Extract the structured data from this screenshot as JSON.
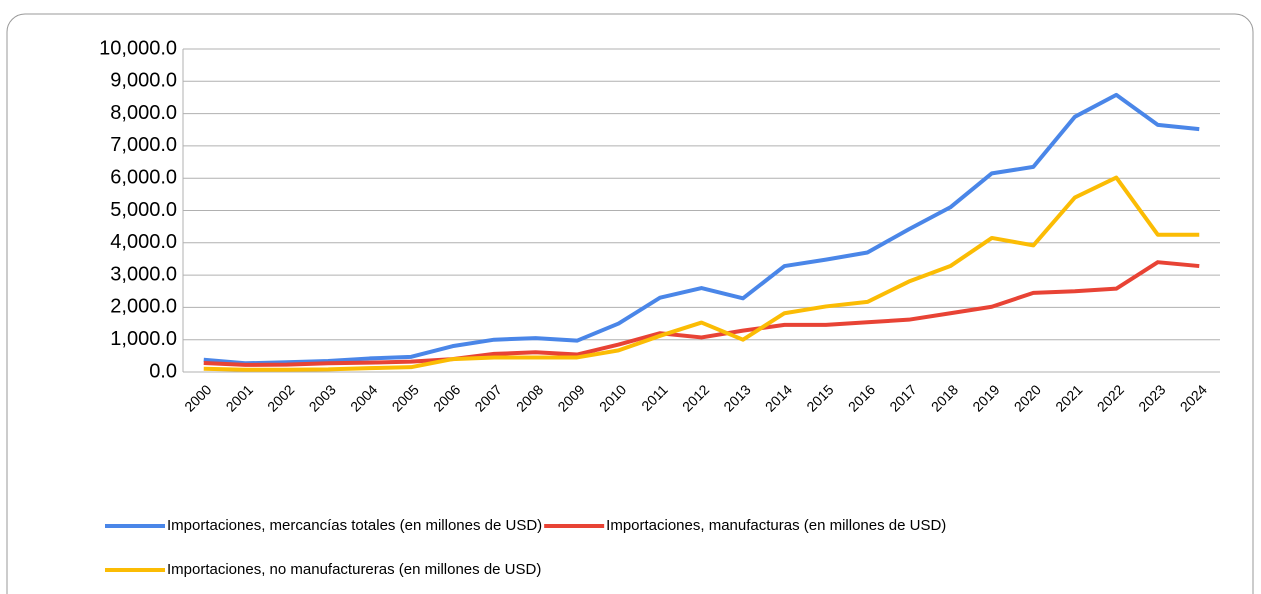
{
  "chart_data": {
    "type": "line",
    "categories": [
      "2000",
      "2001",
      "2002",
      "2003",
      "2004",
      "2005",
      "2006",
      "2007",
      "2008",
      "2009",
      "2010",
      "2011",
      "2012",
      "2013",
      "2014",
      "2015",
      "2016",
      "2017",
      "2018",
      "2019",
      "2020",
      "2021",
      "2022",
      "2023",
      "2024"
    ],
    "series": [
      {
        "name": "Importaciones, mercancías totales (en millones de USD)",
        "color": "#4a86e8",
        "values": [
          380,
          270,
          300,
          340,
          420,
          470,
          800,
          1000,
          1050,
          970,
          1500,
          2300,
          2600,
          2280,
          3280,
          3480,
          3700,
          4420,
          5100,
          6150,
          6350,
          7900,
          8580,
          7650,
          7520
        ]
      },
      {
        "name": "Importaciones, manufacturas (en millones de USD)",
        "color": "#e84335",
        "values": [
          280,
          220,
          230,
          270,
          290,
          320,
          400,
          560,
          610,
          540,
          850,
          1200,
          1070,
          1280,
          1460,
          1460,
          1540,
          1620,
          1820,
          2020,
          2450,
          2500,
          2580,
          3400,
          3280
        ]
      },
      {
        "name": "Importaciones, no manufactureras (en millones de USD)",
        "color": "#fbbc04",
        "values": [
          100,
          70,
          70,
          80,
          120,
          150,
          400,
          450,
          450,
          450,
          670,
          1120,
          1530,
          1000,
          1820,
          2030,
          2170,
          2800,
          3280,
          4150,
          3920,
          5400,
          6020,
          4250,
          4250
        ]
      }
    ],
    "ylim": [
      0,
      10000
    ],
    "yticks": [
      {
        "value": 0,
        "label": "0.0"
      },
      {
        "value": 1000,
        "label": "1,000.0"
      },
      {
        "value": 2000,
        "label": "2,000.0"
      },
      {
        "value": 3000,
        "label": "3,000.0"
      },
      {
        "value": 4000,
        "label": "4,000.0"
      },
      {
        "value": 5000,
        "label": "5,000.0"
      },
      {
        "value": 6000,
        "label": "6,000.0"
      },
      {
        "value": 7000,
        "label": "7,000.0"
      },
      {
        "value": 8000,
        "label": "8,000.0"
      },
      {
        "value": 9000,
        "label": "9,000.0"
      },
      {
        "value": 10000,
        "label": "10,000.0"
      }
    ],
    "grid": true,
    "legend": "bottom"
  }
}
